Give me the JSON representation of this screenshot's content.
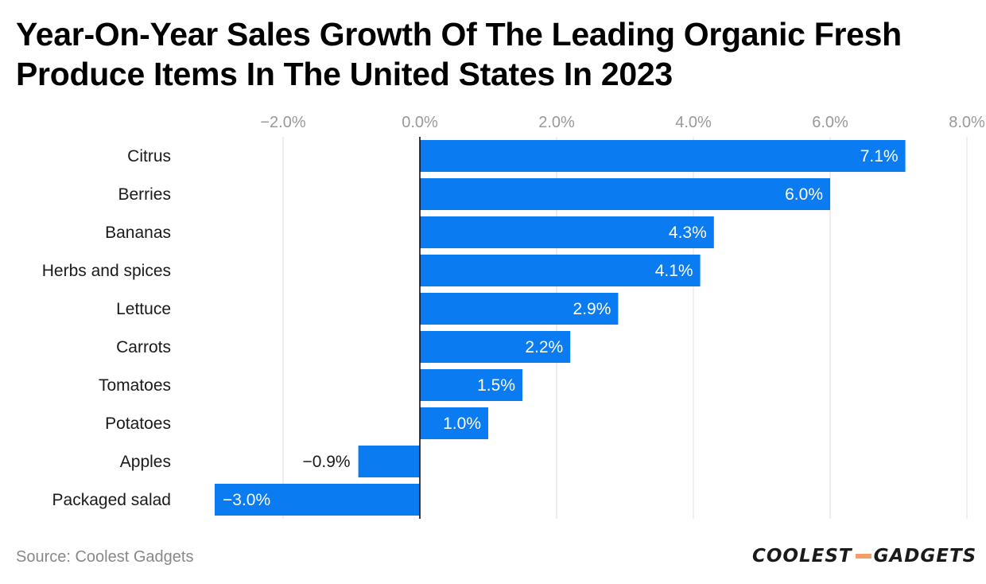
{
  "title_lines": [
    "Year-On-Year Sales Growth Of The Leading Organic Fresh",
    "Produce Items In The United States In 2023"
  ],
  "source": "Source: Coolest Gadgets",
  "logo": {
    "part1": "COOLEST",
    "part2": "GADGETS",
    "dash_color": "#f3a068"
  },
  "chart_data": {
    "type": "bar",
    "orientation": "horizontal",
    "categories": [
      "Citrus",
      "Berries",
      "Bananas",
      "Herbs and spices",
      "Lettuce",
      "Carrots",
      "Tomatoes",
      "Potatoes",
      "Apples",
      "Packaged salad"
    ],
    "values": [
      7.1,
      6.0,
      4.3,
      4.1,
      2.9,
      2.2,
      1.5,
      1.0,
      -0.9,
      -3.0
    ],
    "data_labels": [
      "7.1%",
      "6.0%",
      "4.3%",
      "4.1%",
      "2.9%",
      "2.2%",
      "1.5%",
      "1.0%",
      "−0.9%",
      "−3.0%"
    ],
    "x_ticks": [
      -2,
      0,
      2,
      4,
      6,
      8
    ],
    "x_tick_labels": [
      "−2.0%",
      "0.0%",
      "2.0%",
      "4.0%",
      "6.0%",
      "8.0%"
    ],
    "xlim": [
      -4,
      8
    ],
    "xaxis_position": "top",
    "grid": true,
    "bar_color": "#0a7bf0",
    "grid_color": "#dddddd",
    "tick_color": "#999999"
  }
}
